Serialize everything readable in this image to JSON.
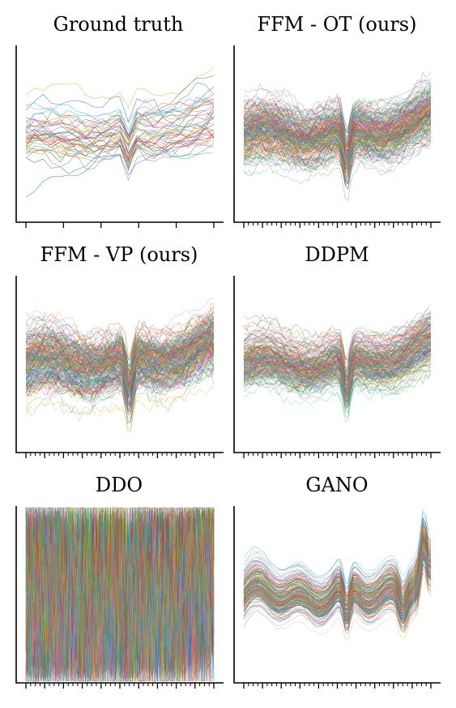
{
  "figure": {
    "panels": [
      {
        "title": "Ground truth",
        "n": 40,
        "seed": 11,
        "lw": 0.55,
        "op": 0.85,
        "noise": 0.55,
        "spread": 1.0,
        "major": 6,
        "minors": 0,
        "mode": "gt"
      },
      {
        "title": "FFM - OT (ours)",
        "n": 220,
        "seed": 23,
        "lw": 0.4,
        "op": 0.8,
        "noise": 0.35,
        "spread": 1.0,
        "major": 11,
        "minors": 3,
        "mode": "smooth"
      },
      {
        "title": "FFM - VP (ours)",
        "n": 220,
        "seed": 37,
        "lw": 0.4,
        "op": 0.8,
        "noise": 0.4,
        "spread": 1.1,
        "major": 11,
        "minors": 3,
        "mode": "smooth"
      },
      {
        "title": "DDPM",
        "n": 200,
        "seed": 41,
        "lw": 0.4,
        "op": 0.8,
        "noise": 0.3,
        "spread": 0.9,
        "major": 11,
        "minors": 3,
        "mode": "smooth"
      },
      {
        "title": "DDO",
        "n": 220,
        "seed": 53,
        "lw": 0.4,
        "op": 0.75,
        "noise": 2.2,
        "spread": 1.5,
        "major": 11,
        "minors": 3,
        "mode": "noisy"
      },
      {
        "title": "GANO",
        "n": 200,
        "seed": 67,
        "lw": 0.4,
        "op": 0.8,
        "noise": 0.08,
        "spread": 0.8,
        "major": 11,
        "minors": 3,
        "mode": "gano"
      }
    ],
    "palette": [
      "#1f77b4",
      "#ff7f0e",
      "#2ca02c",
      "#d62728",
      "#9467bd",
      "#8c564b",
      "#e377c2",
      "#7f7f7f",
      "#bcbd22",
      "#17becf"
    ]
  },
  "chart_data": [
    {
      "type": "line",
      "title": "Ground truth",
      "xlabel": "",
      "ylabel": "",
      "series_count": 40
    },
    {
      "type": "line",
      "title": "FFM - OT (ours)",
      "xlabel": "",
      "ylabel": "",
      "series_count": 220
    },
    {
      "type": "line",
      "title": "FFM - VP (ours)",
      "xlabel": "",
      "ylabel": "",
      "series_count": 220
    },
    {
      "type": "line",
      "title": "DDPM",
      "xlabel": "",
      "ylabel": "",
      "series_count": 200
    },
    {
      "type": "line",
      "title": "DDO",
      "xlabel": "",
      "ylabel": "",
      "series_count": 220
    },
    {
      "type": "line",
      "title": "GANO",
      "xlabel": "",
      "ylabel": "",
      "series_count": 200
    }
  ]
}
